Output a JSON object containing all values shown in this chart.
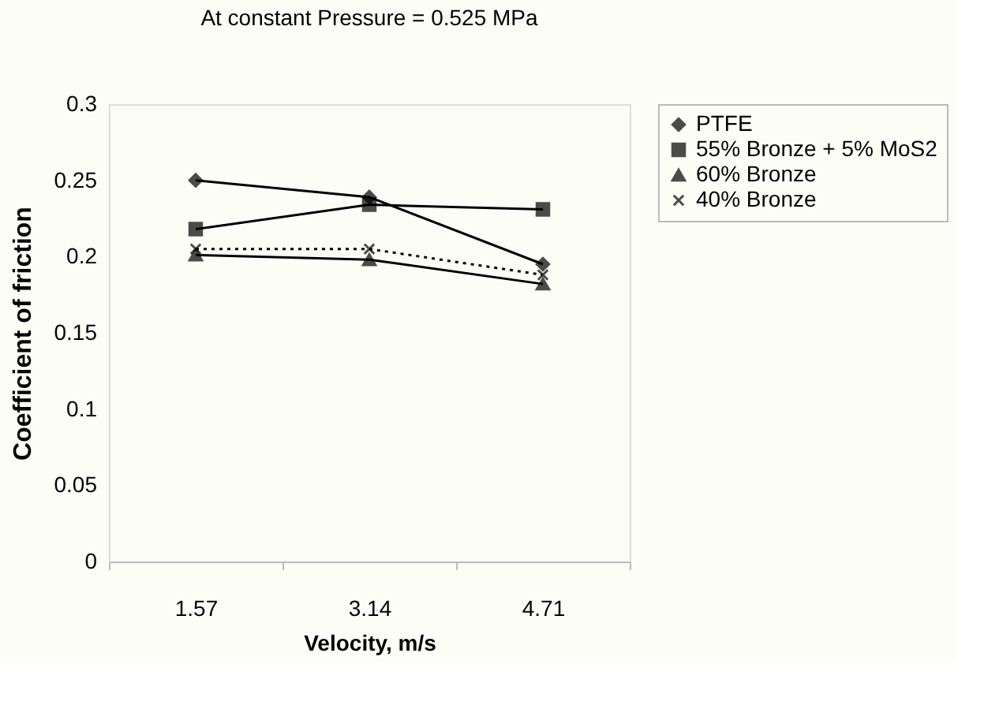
{
  "chart_data": {
    "type": "line",
    "title": "At constant Pressure = 0.525 MPa",
    "xlabel": "Velocity, m/s",
    "ylabel": "Coefficient of friction",
    "categories": [
      "1.57",
      "3.14",
      "4.71"
    ],
    "series": [
      {
        "name": "PTFE",
        "color": "#000000",
        "marker": "diamond",
        "line_style": "solid",
        "values": [
          0.25,
          0.239,
          0.195
        ]
      },
      {
        "name": "55% Bronze + 5% MoS2",
        "color": "#000000",
        "marker": "square",
        "line_style": "solid",
        "values": [
          0.218,
          0.234,
          0.231
        ]
      },
      {
        "name": "60% Bronze",
        "color": "#000000",
        "marker": "triangle",
        "line_style": "solid",
        "values": [
          0.201,
          0.198,
          0.182
        ]
      },
      {
        "name": "40% Bronze",
        "color": "#000000",
        "marker": "cross",
        "line_style": "dotted",
        "values": [
          0.205,
          0.205,
          0.188
        ]
      }
    ],
    "ylim": [
      0,
      0.3
    ],
    "yticks": [
      0,
      0.05,
      0.1,
      0.15,
      0.2,
      0.25,
      0.3
    ],
    "grid": false,
    "legend": "top right"
  }
}
